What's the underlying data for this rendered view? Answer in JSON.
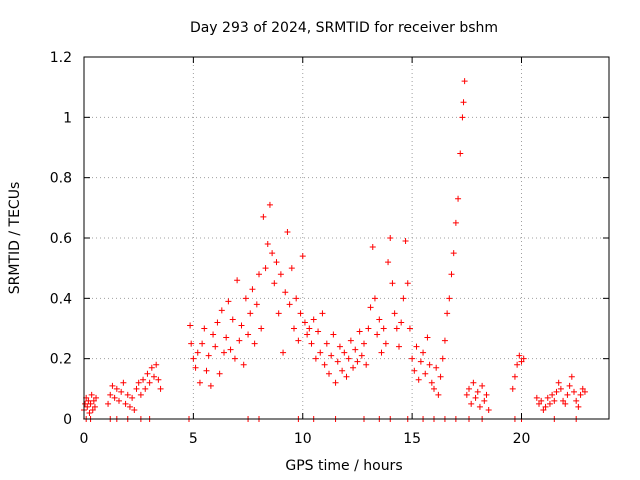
{
  "chart_data": {
    "type": "scatter",
    "title": "Day 293 of 2024, SRMTID for receiver bshm",
    "xlabel": "GPS time / hours",
    "ylabel": "SRMTID / TECUs",
    "xlim": [
      0,
      24
    ],
    "ylim": [
      0,
      1.2
    ],
    "x_ticks": [
      0,
      5,
      10,
      15,
      20
    ],
    "x_tick_labels": [
      "0",
      "5",
      "10",
      "15",
      "20"
    ],
    "y_ticks": [
      0,
      0.2,
      0.4,
      0.6,
      0.8,
      1.0,
      1.2
    ],
    "y_tick_labels": [
      "0",
      "0.2",
      "0.4",
      "0.6",
      "0.8",
      "1",
      "1.2"
    ],
    "grid": true,
    "marker": "+",
    "marker_color": "#ff0000",
    "series": [
      {
        "name": "SRMTID",
        "points": [
          [
            0.0,
            0.03
          ],
          [
            0.05,
            0.05
          ],
          [
            0.1,
            0.07
          ],
          [
            0.15,
            0.04
          ],
          [
            0.2,
            0.06
          ],
          [
            0.25,
            0.02
          ],
          [
            0.3,
            0.05
          ],
          [
            0.35,
            0.08
          ],
          [
            0.4,
            0.03
          ],
          [
            0.45,
            0.06
          ],
          [
            0.5,
            0.04
          ],
          [
            0.55,
            0.07
          ],
          [
            0.1,
            0.0
          ],
          [
            0.3,
            0.0
          ],
          [
            1.1,
            0.05
          ],
          [
            1.2,
            0.08
          ],
          [
            1.3,
            0.11
          ],
          [
            1.4,
            0.07
          ],
          [
            1.5,
            0.1
          ],
          [
            1.6,
            0.06
          ],
          [
            1.7,
            0.09
          ],
          [
            1.8,
            0.12
          ],
          [
            1.9,
            0.05
          ],
          [
            2.0,
            0.08
          ],
          [
            2.1,
            0.04
          ],
          [
            2.2,
            0.07
          ],
          [
            2.3,
            0.03
          ],
          [
            2.4,
            0.1
          ],
          [
            2.5,
            0.12
          ],
          [
            2.6,
            0.08
          ],
          [
            2.7,
            0.13
          ],
          [
            2.8,
            0.1
          ],
          [
            2.9,
            0.15
          ],
          [
            3.0,
            0.12
          ],
          [
            3.1,
            0.17
          ],
          [
            3.2,
            0.14
          ],
          [
            3.3,
            0.18
          ],
          [
            3.4,
            0.13
          ],
          [
            3.5,
            0.1
          ],
          [
            1.2,
            0.0
          ],
          [
            1.5,
            0.0
          ],
          [
            2.0,
            0.0
          ],
          [
            2.6,
            0.0
          ],
          [
            3.0,
            0.0
          ],
          [
            4.8,
            0.0
          ],
          [
            4.85,
            0.31
          ],
          [
            4.9,
            0.25
          ],
          [
            5.0,
            0.2
          ],
          [
            5.1,
            0.17
          ],
          [
            5.2,
            0.22
          ],
          [
            5.3,
            0.12
          ],
          [
            5.4,
            0.25
          ],
          [
            5.5,
            0.3
          ],
          [
            5.6,
            0.16
          ],
          [
            5.7,
            0.21
          ],
          [
            5.8,
            0.11
          ],
          [
            5.9,
            0.28
          ],
          [
            6.0,
            0.24
          ],
          [
            6.1,
            0.32
          ],
          [
            6.2,
            0.15
          ],
          [
            6.3,
            0.36
          ],
          [
            6.4,
            0.22
          ],
          [
            6.5,
            0.27
          ],
          [
            6.6,
            0.39
          ],
          [
            6.7,
            0.23
          ],
          [
            6.8,
            0.33
          ],
          [
            6.9,
            0.2
          ],
          [
            7.0,
            0.46
          ],
          [
            7.1,
            0.26
          ],
          [
            7.2,
            0.31
          ],
          [
            7.3,
            0.18
          ],
          [
            7.4,
            0.4
          ],
          [
            7.5,
            0.28
          ],
          [
            7.6,
            0.35
          ],
          [
            7.7,
            0.43
          ],
          [
            7.8,
            0.25
          ],
          [
            7.9,
            0.38
          ],
          [
            8.0,
            0.48
          ],
          [
            8.1,
            0.3
          ],
          [
            8.2,
            0.67
          ],
          [
            8.3,
            0.5
          ],
          [
            8.4,
            0.58
          ],
          [
            8.5,
            0.71
          ],
          [
            8.6,
            0.55
          ],
          [
            8.7,
            0.45
          ],
          [
            8.8,
            0.52
          ],
          [
            8.9,
            0.35
          ],
          [
            9.0,
            0.48
          ],
          [
            9.1,
            0.22
          ],
          [
            9.2,
            0.42
          ],
          [
            9.3,
            0.62
          ],
          [
            9.4,
            0.38
          ],
          [
            9.5,
            0.5
          ],
          [
            9.6,
            0.3
          ],
          [
            9.7,
            0.4
          ],
          [
            9.8,
            0.26
          ],
          [
            9.9,
            0.35
          ],
          [
            10.0,
            0.54
          ],
          [
            10.1,
            0.32
          ],
          [
            10.2,
            0.28
          ],
          [
            10.3,
            0.3
          ],
          [
            10.4,
            0.25
          ],
          [
            10.5,
            0.33
          ],
          [
            10.6,
            0.2
          ],
          [
            10.7,
            0.29
          ],
          [
            10.8,
            0.22
          ],
          [
            10.9,
            0.35
          ],
          [
            11.0,
            0.18
          ],
          [
            11.1,
            0.25
          ],
          [
            11.2,
            0.15
          ],
          [
            11.3,
            0.21
          ],
          [
            11.4,
            0.28
          ],
          [
            11.5,
            0.12
          ],
          [
            11.6,
            0.19
          ],
          [
            11.7,
            0.24
          ],
          [
            11.8,
            0.16
          ],
          [
            11.9,
            0.22
          ],
          [
            12.0,
            0.14
          ],
          [
            12.1,
            0.2
          ],
          [
            12.2,
            0.26
          ],
          [
            12.3,
            0.17
          ],
          [
            12.4,
            0.23
          ],
          [
            12.5,
            0.19
          ],
          [
            12.6,
            0.29
          ],
          [
            12.7,
            0.21
          ],
          [
            12.8,
            0.25
          ],
          [
            12.9,
            0.18
          ],
          [
            13.0,
            0.3
          ],
          [
            13.1,
            0.37
          ],
          [
            13.2,
            0.57
          ],
          [
            13.3,
            0.4
          ],
          [
            13.4,
            0.28
          ],
          [
            13.5,
            0.33
          ],
          [
            13.6,
            0.22
          ],
          [
            13.7,
            0.3
          ],
          [
            13.8,
            0.25
          ],
          [
            13.9,
            0.52
          ],
          [
            14.0,
            0.6
          ],
          [
            14.1,
            0.45
          ],
          [
            14.2,
            0.35
          ],
          [
            14.3,
            0.3
          ],
          [
            14.4,
            0.24
          ],
          [
            14.5,
            0.32
          ],
          [
            14.6,
            0.4
          ],
          [
            14.7,
            0.59
          ],
          [
            14.8,
            0.45
          ],
          [
            14.9,
            0.3
          ],
          [
            15.0,
            0.2
          ],
          [
            15.1,
            0.16
          ],
          [
            15.2,
            0.24
          ],
          [
            15.3,
            0.13
          ],
          [
            15.4,
            0.19
          ],
          [
            15.5,
            0.22
          ],
          [
            15.6,
            0.15
          ],
          [
            15.7,
            0.27
          ],
          [
            15.8,
            0.18
          ],
          [
            15.9,
            0.12
          ],
          [
            16.0,
            0.1
          ],
          [
            16.1,
            0.17
          ],
          [
            16.2,
            0.08
          ],
          [
            16.3,
            0.14
          ],
          [
            16.4,
            0.2
          ],
          [
            16.5,
            0.26
          ],
          [
            16.6,
            0.35
          ],
          [
            16.7,
            0.4
          ],
          [
            16.8,
            0.48
          ],
          [
            16.9,
            0.55
          ],
          [
            17.0,
            0.65
          ],
          [
            17.1,
            0.73
          ],
          [
            17.2,
            0.88
          ],
          [
            17.3,
            1.0
          ],
          [
            17.35,
            1.05
          ],
          [
            17.4,
            1.12
          ],
          [
            7.5,
            0.0
          ],
          [
            8.0,
            0.0
          ],
          [
            9.8,
            0.0
          ],
          [
            10.5,
            0.0
          ],
          [
            11.5,
            0.0
          ],
          [
            12.8,
            0.0
          ],
          [
            13.5,
            0.0
          ],
          [
            14.0,
            0.0
          ],
          [
            14.8,
            0.0
          ],
          [
            15.5,
            0.0
          ],
          [
            16.0,
            0.0
          ],
          [
            16.5,
            0.0
          ],
          [
            17.0,
            0.0
          ],
          [
            17.5,
            0.08
          ],
          [
            17.6,
            0.1
          ],
          [
            17.7,
            0.05
          ],
          [
            17.8,
            0.12
          ],
          [
            17.9,
            0.07
          ],
          [
            18.0,
            0.09
          ],
          [
            18.1,
            0.04
          ],
          [
            18.2,
            0.11
          ],
          [
            18.3,
            0.06
          ],
          [
            18.4,
            0.08
          ],
          [
            18.5,
            0.03
          ],
          [
            17.6,
            0.0
          ],
          [
            18.2,
            0.0
          ],
          [
            19.6,
            0.1
          ],
          [
            19.7,
            0.14
          ],
          [
            19.8,
            0.18
          ],
          [
            19.9,
            0.21
          ],
          [
            20.0,
            0.19
          ],
          [
            20.1,
            0.2
          ],
          [
            19.7,
            0.0
          ],
          [
            20.0,
            0.0
          ],
          [
            20.7,
            0.07
          ],
          [
            20.8,
            0.05
          ],
          [
            20.9,
            0.06
          ],
          [
            21.0,
            0.03
          ],
          [
            21.1,
            0.04
          ],
          [
            21.2,
            0.07
          ],
          [
            21.3,
            0.05
          ],
          [
            21.4,
            0.08
          ],
          [
            21.5,
            0.06
          ],
          [
            21.6,
            0.09
          ],
          [
            21.7,
            0.12
          ],
          [
            21.8,
            0.1
          ],
          [
            21.9,
            0.06
          ],
          [
            22.0,
            0.05
          ],
          [
            22.1,
            0.08
          ],
          [
            22.2,
            0.11
          ],
          [
            22.3,
            0.14
          ],
          [
            22.4,
            0.09
          ],
          [
            22.5,
            0.06
          ],
          [
            22.6,
            0.04
          ],
          [
            22.7,
            0.08
          ],
          [
            22.8,
            0.1
          ],
          [
            22.9,
            0.09
          ],
          [
            21.5,
            0.0
          ],
          [
            22.5,
            0.0
          ]
        ]
      }
    ]
  }
}
